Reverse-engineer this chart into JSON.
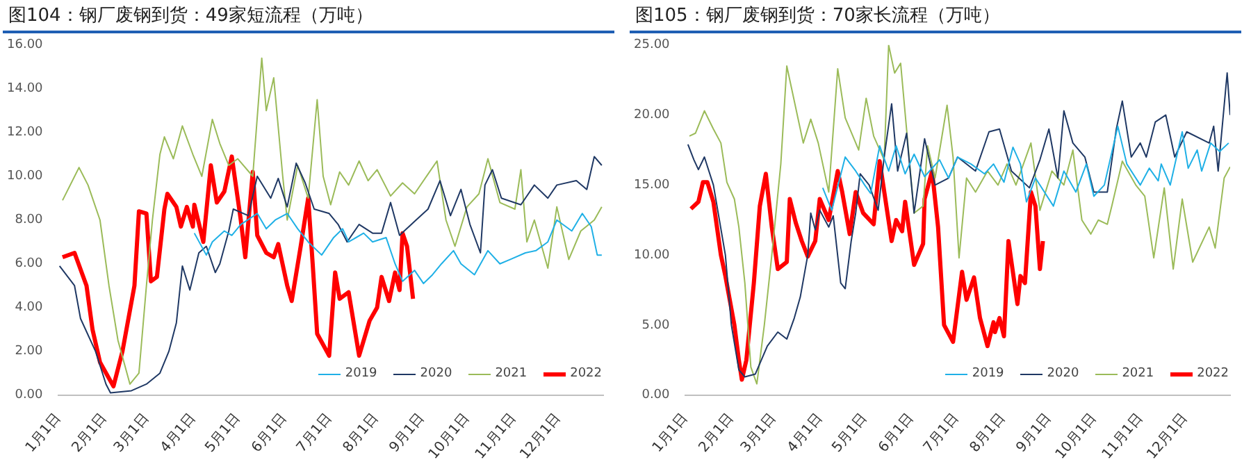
{
  "chart_data": [
    {
      "type": "line",
      "title": "图104：钢厂废钢到货：49家短流程（万吨）",
      "xlim": [
        "--01-01",
        "--12-31"
      ],
      "xticks": [
        {
          "value": "--01-01",
          "label": "1月1日"
        },
        {
          "value": "--02-01",
          "label": "2月1日"
        },
        {
          "value": "--03-01",
          "label": "3月1日"
        },
        {
          "value": "--04-01",
          "label": "4月1日"
        },
        {
          "value": "--05-01",
          "label": "5月1日"
        },
        {
          "value": "--06-01",
          "label": "6月1日"
        },
        {
          "value": "--07-01",
          "label": "7月1日"
        },
        {
          "value": "--08-01",
          "label": "8月1日"
        },
        {
          "value": "--09-01",
          "label": "9月1日"
        },
        {
          "value": "--10-01",
          "label": "10月1日"
        },
        {
          "value": "--11-01",
          "label": "11月1日"
        },
        {
          "value": "--12-01",
          "label": "12月1日"
        }
      ],
      "ylim": [
        0,
        16
      ],
      "yticks": [
        {
          "value": 0,
          "label": "0.00"
        },
        {
          "value": 2,
          "label": "2.00"
        },
        {
          "value": 4,
          "label": "4.00"
        },
        {
          "value": 6,
          "label": "6.00"
        },
        {
          "value": 8,
          "label": "8.00"
        },
        {
          "value": 10,
          "label": "10.00"
        },
        {
          "value": 12,
          "label": "12.00"
        },
        {
          "value": 14,
          "label": "14.00"
        },
        {
          "value": 16,
          "label": "16.00"
        }
      ],
      "grid": false,
      "legend": "bottom right",
      "marker": "none",
      "line_style": "solid",
      "series": [
        {
          "name": "2019",
          "color": "#1fb0e6",
          "x": [
            "--04-02",
            "--04-10",
            "--04-14",
            "--04-22",
            "--04-27",
            "--05-03",
            "--05-14",
            "--05-20",
            "--05-26",
            "--06-03",
            "--06-10",
            "--06-17",
            "--06-26",
            "--07-04",
            "--07-10",
            "--07-14",
            "--07-24",
            "--07-30",
            "--08-08",
            "--08-14",
            "--08-19",
            "--08-27",
            "--09-02",
            "--09-08",
            "--09-14",
            "--09-22",
            "--09-27",
            "--10-06",
            "--10-15",
            "--10-23",
            "--10-30",
            "--11-09",
            "--11-16",
            "--11-24",
            "--11-30",
            "--12-10",
            "--12-17",
            "--12-23",
            "--12-27",
            "--12-30"
          ],
          "values": [
            7.4,
            6.4,
            7.0,
            7.5,
            7.3,
            7.8,
            8.3,
            7.6,
            8.0,
            8.3,
            7.6,
            7.0,
            6.4,
            7.2,
            7.6,
            7.0,
            7.4,
            7.0,
            7.2,
            6.0,
            5.2,
            5.7,
            5.1,
            5.5,
            6.0,
            6.6,
            6.0,
            5.5,
            6.6,
            6.0,
            6.2,
            6.5,
            6.6,
            7.0,
            8.0,
            7.5,
            8.3,
            7.7,
            6.4,
            6.4
          ]
        },
        {
          "name": "2020",
          "color": "#1f3864",
          "x": [
            "--01-02",
            "--01-12",
            "--01-16",
            "--01-26",
            "--02-02",
            "--02-05",
            "--02-19",
            "--03-01",
            "--03-10",
            "--03-16",
            "--03-21",
            "--03-25",
            "--03-30",
            "--04-05",
            "--04-10",
            "--04-16",
            "--04-19",
            "--04-25",
            "--04-28",
            "--05-08",
            "--05-14",
            "--05-23",
            "--05-28",
            "--06-03",
            "--06-09",
            "--06-15",
            "--06-21",
            "--07-01",
            "--07-07",
            "--07-13",
            "--07-21",
            "--07-30",
            "--08-05",
            "--08-11",
            "--08-17",
            "--08-28",
            "--09-05",
            "--09-13",
            "--09-20",
            "--09-27",
            "--10-03",
            "--10-10",
            "--10-13",
            "--10-18",
            "--10-24",
            "--11-06",
            "--11-15",
            "--11-24",
            "--11-30",
            "--12-13",
            "--12-20",
            "--12-25",
            "--12-30"
          ],
          "values": [
            5.9,
            5.0,
            3.5,
            2.0,
            0.5,
            0.1,
            0.2,
            0.5,
            1.0,
            2.0,
            3.3,
            5.9,
            4.8,
            6.5,
            6.8,
            5.6,
            6.0,
            7.5,
            8.5,
            8.2,
            10.0,
            9.0,
            9.9,
            8.6,
            10.6,
            9.7,
            8.5,
            8.3,
            7.8,
            7.0,
            7.8,
            7.4,
            7.4,
            8.8,
            7.3,
            8.0,
            8.5,
            9.8,
            8.2,
            9.4,
            7.8,
            6.5,
            9.6,
            10.3,
            9.0,
            8.7,
            9.6,
            9.0,
            9.6,
            9.8,
            9.4,
            10.9,
            10.5
          ]
        },
        {
          "name": "2021",
          "color": "#9bbb59",
          "x": [
            "--01-04",
            "--01-15",
            "--01-21",
            "--01-29",
            "--02-04",
            "--02-10",
            "--02-18",
            "--02-24",
            "--03-01",
            "--03-05",
            "--03-10",
            "--03-13",
            "--03-19",
            "--03-25",
            "--04-01",
            "--04-07",
            "--04-14",
            "--04-19",
            "--04-25",
            "--05-01",
            "--05-11",
            "--05-17",
            "--05-20",
            "--05-25",
            "--05-31",
            "--06-03",
            "--06-10",
            "--06-17",
            "--06-23",
            "--06-27",
            "--07-02",
            "--07-08",
            "--07-14",
            "--07-21",
            "--07-27",
            "--08-02",
            "--08-11",
            "--08-19",
            "--08-27",
            "--09-05",
            "--09-11",
            "--09-17",
            "--09-23",
            "--10-01",
            "--10-09",
            "--10-15",
            "--10-23",
            "--11-02",
            "--11-06",
            "--11-10",
            "--11-15",
            "--11-24",
            "--11-30",
            "--12-08",
            "--12-16",
            "--12-25",
            "--12-30"
          ],
          "values": [
            8.9,
            10.4,
            9.6,
            8.0,
            5.0,
            2.5,
            0.5,
            1.0,
            5.0,
            8.0,
            11.0,
            11.8,
            10.8,
            12.3,
            11.0,
            10.0,
            12.6,
            11.5,
            10.5,
            10.8,
            10.0,
            15.4,
            13.0,
            14.5,
            10.0,
            8.0,
            10.5,
            9.0,
            13.5,
            10.0,
            8.7,
            10.2,
            9.6,
            10.7,
            9.8,
            10.3,
            9.1,
            9.7,
            9.2,
            10.1,
            10.7,
            8.0,
            6.8,
            8.6,
            9.2,
            10.8,
            8.8,
            8.5,
            10.3,
            7.0,
            8.0,
            5.8,
            8.6,
            6.2,
            7.5,
            8.0,
            8.6
          ]
        },
        {
          "name": "2022",
          "color": "#ff0000",
          "x": [
            "--01-04",
            "--01-12",
            "--01-20",
            "--01-24",
            "--01-29",
            "--02-07",
            "--02-13",
            "--02-21",
            "--02-24",
            "--03-01",
            "--03-04",
            "--03-08",
            "--03-13",
            "--03-15",
            "--03-21",
            "--03-24",
            "--03-28",
            "--04-01",
            "--04-02",
            "--04-08",
            "--04-13",
            "--04-17",
            "--04-22",
            "--04-27",
            "--05-03",
            "--05-06",
            "--05-11",
            "--05-14",
            "--05-20",
            "--05-25",
            "--05-28",
            "--06-03",
            "--06-06",
            "--06-12",
            "--06-17",
            "--06-20",
            "--06-23",
            "--07-01",
            "--07-05",
            "--07-08",
            "--07-14",
            "--07-21",
            "--07-28",
            "--08-02",
            "--08-05",
            "--08-10",
            "--08-14",
            "--08-17",
            "--08-19",
            "--08-22",
            "--08-26"
          ],
          "values": [
            6.3,
            6.5,
            5.0,
            3.0,
            1.5,
            0.4,
            2.0,
            5.0,
            8.4,
            8.3,
            5.2,
            5.4,
            8.5,
            9.2,
            8.6,
            7.7,
            8.6,
            7.7,
            8.7,
            7.0,
            10.5,
            8.8,
            9.3,
            10.9,
            8.0,
            6.3,
            10.2,
            7.3,
            6.5,
            6.3,
            6.9,
            5.0,
            4.3,
            6.8,
            9.0,
            6.0,
            2.8,
            1.8,
            5.6,
            4.4,
            4.7,
            1.8,
            3.4,
            4.0,
            5.4,
            4.3,
            5.6,
            4.8,
            7.4,
            6.8,
            4.4
          ]
        }
      ]
    },
    {
      "type": "line",
      "title": "图105：钢厂废钢到货：70家长流程（万吨）",
      "xlim": [
        "--01-01",
        "--12-31"
      ],
      "xticks": [
        {
          "value": "--01-01",
          "label": "1月1日"
        },
        {
          "value": "--02-01",
          "label": "2月1日"
        },
        {
          "value": "--03-01",
          "label": "3月1日"
        },
        {
          "value": "--04-01",
          "label": "4月1日"
        },
        {
          "value": "--05-01",
          "label": "5月1日"
        },
        {
          "value": "--06-01",
          "label": "6月1日"
        },
        {
          "value": "--07-01",
          "label": "7月1日"
        },
        {
          "value": "--08-01",
          "label": "8月1日"
        },
        {
          "value": "--09-01",
          "label": "9月1日"
        },
        {
          "value": "--10-01",
          "label": "10月1日"
        },
        {
          "value": "--11-01",
          "label": "11月1日"
        },
        {
          "value": "--12-01",
          "label": "12月1日"
        }
      ],
      "ylim": [
        0,
        25
      ],
      "yticks": [
        {
          "value": 0,
          "label": "0.00"
        },
        {
          "value": 5,
          "label": "5.00"
        },
        {
          "value": 10,
          "label": "10.00"
        },
        {
          "value": 15,
          "label": "15.00"
        },
        {
          "value": 20,
          "label": "20.00"
        },
        {
          "value": 25,
          "label": "25.00"
        }
      ],
      "grid": false,
      "legend": "bottom right",
      "marker": "none",
      "line_style": "solid",
      "series": [
        {
          "name": "2019",
          "color": "#1fb0e6",
          "x": [
            "--04-03",
            "--04-09",
            "--04-18",
            "--04-25",
            "--05-01",
            "--05-05",
            "--05-11",
            "--05-17",
            "--05-22",
            "--05-28",
            "--06-03",
            "--06-10",
            "--06-20",
            "--06-26",
            "--07-02",
            "--07-11",
            "--07-20",
            "--07-26",
            "--08-02",
            "--08-08",
            "--08-13",
            "--08-17",
            "--08-23",
            "--09-04",
            "--09-11",
            "--09-19",
            "--09-26",
            "--10-01",
            "--10-08",
            "--10-17",
            "--10-23",
            "--11-01",
            "--11-07",
            "--11-13",
            "--11-15",
            "--11-21",
            "--11-29",
            "--12-03",
            "--12-09",
            "--12-12",
            "--12-18",
            "--12-24",
            "--12-30"
          ],
          "values": [
            14.8,
            13.2,
            17.0,
            16.0,
            15.0,
            14.4,
            17.8,
            16.0,
            17.8,
            15.8,
            17.2,
            15.6,
            16.8,
            15.5,
            17.0,
            16.5,
            15.8,
            16.5,
            15.2,
            17.7,
            16.5,
            13.8,
            15.5,
            13.5,
            16.0,
            14.5,
            16.5,
            14.2,
            15.0,
            19.2,
            16.5,
            15.0,
            16.2,
            15.3,
            16.5,
            15.0,
            18.8,
            16.2,
            17.5,
            16.0,
            18.0,
            17.4,
            18.0
          ]
        },
        {
          "name": "2020",
          "color": "#1f3864",
          "x": [
            "--01-03",
            "--01-07",
            "--01-10",
            "--01-14",
            "--01-20",
            "--01-28",
            "--02-01",
            "--02-06",
            "--02-10",
            "--02-17",
            "--02-25",
            "--03-04",
            "--03-10",
            "--03-15",
            "--03-19",
            "--03-24",
            "--03-26",
            "--03-29",
            "--04-01",
            "--04-07",
            "--04-10",
            "--04-15",
            "--04-18",
            "--04-22",
            "--04-25",
            "--04-28",
            "--05-04",
            "--05-10",
            "--05-14",
            "--05-19",
            "--05-23",
            "--05-29",
            "--06-03",
            "--06-10",
            "--06-17",
            "--06-26",
            "--07-02",
            "--07-14",
            "--07-23",
            "--07-30",
            "--08-07",
            "--08-19",
            "--08-26",
            "--09-01",
            "--09-07",
            "--09-11",
            "--09-17",
            "--09-25",
            "--10-01",
            "--10-10",
            "--10-16",
            "--10-20",
            "--10-26",
            "--11-01",
            "--11-05",
            "--11-11",
            "--11-18",
            "--11-24",
            "--12-02",
            "--12-17",
            "--12-20",
            "--12-23",
            "--12-29",
            "--12-31"
          ],
          "values": [
            17.9,
            16.8,
            16.1,
            17.0,
            15.0,
            10.0,
            5.0,
            1.8,
            1.3,
            1.5,
            3.5,
            4.5,
            4.0,
            5.5,
            7.0,
            10.0,
            13.0,
            11.8,
            13.2,
            12.0,
            12.8,
            8.0,
            7.6,
            11.0,
            13.0,
            15.8,
            15.0,
            13.2,
            17.0,
            20.8,
            16.0,
            18.7,
            13.0,
            18.3,
            15.0,
            15.5,
            17.0,
            16.0,
            18.8,
            19.0,
            16.0,
            14.8,
            16.8,
            19.0,
            15.5,
            20.3,
            18.0,
            17.0,
            14.5,
            14.5,
            19.0,
            21.0,
            17.0,
            18.0,
            17.0,
            19.5,
            20.0,
            17.0,
            18.8,
            18.0,
            19.2,
            16.0,
            23.0,
            20.0
          ]
        },
        {
          "name": "2021",
          "color": "#9bbb59",
          "x": [
            "--01-04",
            "--01-08",
            "--01-14",
            "--01-20",
            "--01-25",
            "--01-29",
            "--02-03",
            "--02-06",
            "--02-10",
            "--02-14",
            "--02-18",
            "--02-23",
            "--02-28",
            "--03-06",
            "--03-10",
            "--03-13",
            "--03-21",
            "--03-26",
            "--03-31",
            "--04-07",
            "--04-13",
            "--04-18",
            "--04-27",
            "--05-02",
            "--05-07",
            "--05-14",
            "--05-17",
            "--05-21",
            "--05-25",
            "--06-03",
            "--06-09",
            "--06-12",
            "--06-17",
            "--06-25",
            "--06-29",
            "--07-03",
            "--07-08",
            "--07-14",
            "--07-22",
            "--07-29",
            "--08-04",
            "--08-10",
            "--08-20",
            "--08-26",
            "--09-03",
            "--09-11",
            "--09-17",
            "--09-23",
            "--09-29",
            "--10-04",
            "--10-10",
            "--10-13",
            "--10-20",
            "--10-29",
            "--11-04",
            "--11-07",
            "--11-10",
            "--11-17",
            "--11-23",
            "--11-29",
            "--12-06",
            "--12-17",
            "--12-21",
            "--12-27",
            "--12-31"
          ],
          "values": [
            18.5,
            18.7,
            20.3,
            19.0,
            18.0,
            15.2,
            14.0,
            12.0,
            8.0,
            2.0,
            0.8,
            5.0,
            10.0,
            16.5,
            23.5,
            22.0,
            18.0,
            19.7,
            18.0,
            14.5,
            23.3,
            19.8,
            17.5,
            21.2,
            18.5,
            16.8,
            25.0,
            23.0,
            23.7,
            13.0,
            13.5,
            17.8,
            15.5,
            20.7,
            17.0,
            9.8,
            15.5,
            14.5,
            16.0,
            15.0,
            16.5,
            15.0,
            18.0,
            13.2,
            16.0,
            15.0,
            17.5,
            12.5,
            11.5,
            12.5,
            12.2,
            13.5,
            16.7,
            15.0,
            14.2,
            12.0,
            9.8,
            14.8,
            9.0,
            14.0,
            9.5,
            12.0,
            10.5,
            15.5,
            16.3
          ]
        },
        {
          "name": "2022",
          "color": "#ff0000",
          "x": [
            "--01-05",
            "--01-10",
            "--01-13",
            "--01-16",
            "--01-20",
            "--01-25",
            "--01-28",
            "--02-03",
            "--02-06",
            "--02-08",
            "--02-11",
            "--02-16",
            "--02-20",
            "--02-24",
            "--02-28",
            "--03-04",
            "--03-10",
            "--03-12",
            "--03-16",
            "--03-20",
            "--03-24",
            "--03-29",
            "--04-01",
            "--04-07",
            "--04-13",
            "--04-16",
            "--04-21",
            "--04-25",
            "--04-30",
            "--05-07",
            "--05-11",
            "--05-19",
            "--05-22",
            "--05-26",
            "--05-28",
            "--06-03",
            "--06-09",
            "--06-10",
            "--06-15",
            "--06-19",
            "--06-23",
            "--06-29",
            "--07-05",
            "--07-08",
            "--07-13",
            "--07-17",
            "--07-22",
            "--07-26",
            "--07-27",
            "--07-30",
            "--08-02",
            "--08-05",
            "--08-11",
            "--08-13",
            "--08-16",
            "--08-20",
            "--08-23",
            "--08-26",
            "--08-28"
          ],
          "values": [
            13.3,
            13.8,
            15.2,
            15.2,
            13.8,
            10.0,
            8.5,
            5.0,
            2.5,
            1.1,
            2.5,
            8.0,
            13.5,
            15.8,
            12.0,
            9.0,
            9.5,
            14.0,
            12.3,
            11.0,
            9.9,
            11.0,
            14.0,
            12.5,
            16.0,
            14.5,
            11.5,
            14.5,
            13.0,
            12.2,
            16.7,
            11.0,
            12.5,
            11.7,
            13.8,
            9.3,
            10.8,
            14.0,
            16.0,
            12.0,
            5.0,
            3.8,
            8.8,
            6.8,
            8.4,
            5.5,
            3.5,
            5.2,
            4.5,
            5.5,
            4.2,
            11.0,
            6.5,
            8.5,
            8.0,
            14.5,
            13.5,
            9.0,
            11.0
          ]
        }
      ]
    }
  ]
}
